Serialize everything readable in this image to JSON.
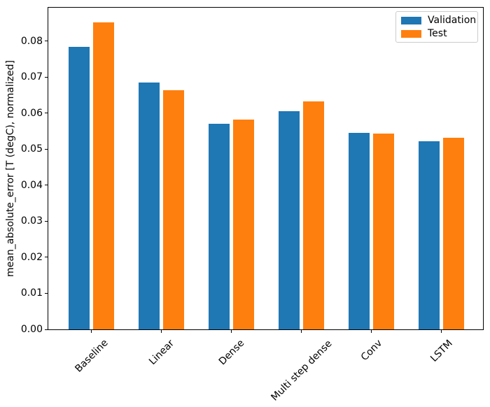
{
  "chart_data": {
    "type": "bar",
    "title": "",
    "xlabel": "",
    "ylabel": "mean_absolute_error [T (degC), normalized]",
    "categories": [
      "Baseline",
      "Linear",
      "Dense",
      "Multi step dense",
      "Conv",
      "LSTM"
    ],
    "series": [
      {
        "name": "Validation",
        "color": "#1f77b4",
        "values": [
          0.0785,
          0.0686,
          0.0571,
          0.0605,
          0.0545,
          0.0522
        ]
      },
      {
        "name": "Test",
        "color": "#ff7f0e",
        "values": [
          0.0852,
          0.0663,
          0.0583,
          0.0633,
          0.0543,
          0.0532
        ]
      }
    ],
    "ylim": [
      0,
      0.0893
    ],
    "yticks": [
      0,
      0.01,
      0.02,
      0.03,
      0.04,
      0.05,
      0.06,
      0.07,
      0.08
    ],
    "ytick_labels": [
      "0.00",
      "0.01",
      "0.02",
      "0.03",
      "0.04",
      "0.05",
      "0.06",
      "0.07",
      "0.08"
    ],
    "x_tick_rotation": 45,
    "grid": false,
    "legend": {
      "position": "upper right",
      "entries": [
        "Validation",
        "Test"
      ]
    },
    "axis_color": "#000000",
    "background_color": "#ffffff"
  }
}
